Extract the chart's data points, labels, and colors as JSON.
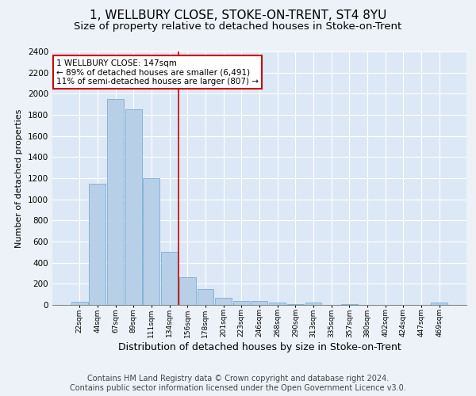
{
  "title1": "1, WELLBURY CLOSE, STOKE-ON-TRENT, ST4 8YU",
  "title2": "Size of property relative to detached houses in Stoke-on-Trent",
  "xlabel": "Distribution of detached houses by size in Stoke-on-Trent",
  "ylabel": "Number of detached properties",
  "footer1": "Contains HM Land Registry data © Crown copyright and database right 2024.",
  "footer2": "Contains public sector information licensed under the Open Government Licence v3.0.",
  "categories": [
    "22sqm",
    "44sqm",
    "67sqm",
    "89sqm",
    "111sqm",
    "134sqm",
    "156sqm",
    "178sqm",
    "201sqm",
    "223sqm",
    "246sqm",
    "268sqm",
    "290sqm",
    "313sqm",
    "335sqm",
    "357sqm",
    "380sqm",
    "402sqm",
    "424sqm",
    "447sqm",
    "469sqm"
  ],
  "values": [
    30,
    1150,
    1950,
    1850,
    1200,
    500,
    260,
    150,
    70,
    40,
    35,
    25,
    5,
    20,
    0,
    5,
    0,
    0,
    0,
    0,
    20
  ],
  "bar_color": "#b8cfe8",
  "bar_edge_color": "#7aaed4",
  "vline_x": 5.5,
  "vline_color": "#cc0000",
  "annotation_text": "1 WELLBURY CLOSE: 147sqm\n← 89% of detached houses are smaller (6,491)\n11% of semi-detached houses are larger (807) →",
  "annotation_box_color": "#ffffff",
  "annotation_box_edge": "#cc0000",
  "ylim": [
    0,
    2400
  ],
  "yticks": [
    0,
    200,
    400,
    600,
    800,
    1000,
    1200,
    1400,
    1600,
    1800,
    2000,
    2200,
    2400
  ],
  "bg_color": "#edf2f8",
  "plot_bg": "#dce8f5",
  "title1_fontsize": 11,
  "title2_fontsize": 9.5,
  "xlabel_fontsize": 9,
  "ylabel_fontsize": 8,
  "footer_fontsize": 7
}
